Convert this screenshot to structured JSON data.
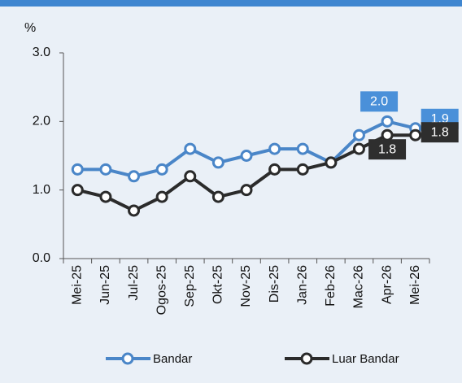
{
  "chart_data": {
    "type": "line",
    "y_axis_label": "%",
    "categories": [
      "Mei-25",
      "Jun-25",
      "Jul-25",
      "Ogos-25",
      "Sep-25",
      "Okt-25",
      "Nov-25",
      "Dis-25",
      "Jan-26",
      "Feb-26",
      "Mac-26",
      "Apr-26",
      "Mei-26"
    ],
    "series": [
      {
        "name": "Bandar",
        "color": "#4a86c8",
        "values": [
          1.3,
          1.3,
          1.2,
          1.3,
          1.6,
          1.4,
          1.5,
          1.6,
          1.6,
          1.4,
          1.8,
          2.0,
          1.9
        ],
        "value_labels": [
          null,
          null,
          null,
          null,
          null,
          null,
          null,
          null,
          null,
          null,
          null,
          "2.0",
          "1.9"
        ]
      },
      {
        "name": "Luar Bandar",
        "color": "#2b2b2b",
        "values": [
          1.0,
          0.9,
          0.7,
          0.9,
          1.2,
          0.9,
          1.0,
          1.3,
          1.3,
          1.4,
          1.6,
          1.8,
          1.8
        ],
        "value_labels": [
          null,
          null,
          null,
          null,
          null,
          null,
          null,
          null,
          null,
          null,
          null,
          "1.8",
          "1.8"
        ]
      }
    ],
    "ylim": [
      0,
      3
    ],
    "yticks": [
      {
        "value": 0,
        "label": "0.0"
      },
      {
        "value": 1,
        "label": "1.0"
      },
      {
        "value": 2,
        "label": "2.0"
      },
      {
        "value": 3,
        "label": "3.0"
      }
    ],
    "legend": "bottom"
  }
}
